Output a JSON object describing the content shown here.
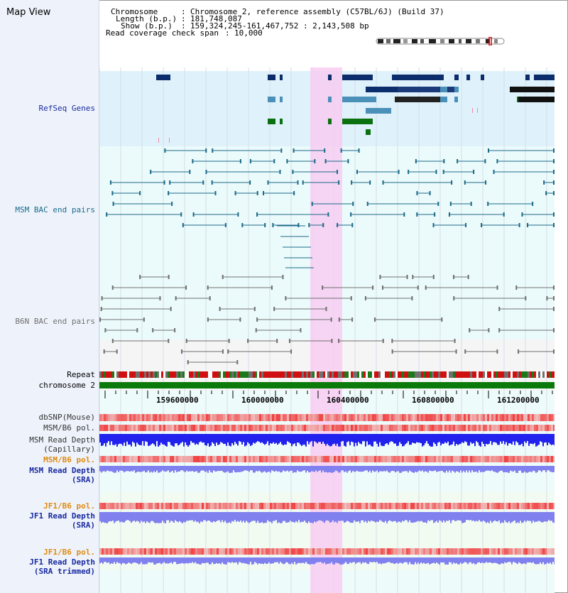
{
  "app": {
    "title": "Map View"
  },
  "info": {
    "chromosome_key": "Chromosome",
    "chromosome_val": "Chromosome 2, reference assembly (C57BL/6J) (Build 37)",
    "length_key": "Length (b.p.)",
    "length_val": "181,748,087",
    "show_key": "Show (b.p.)",
    "show_val": "159,324,245-161,467,752 : 2,143,508 bp",
    "coverage_key": "Read coverage check span",
    "coverage_val": "10,000"
  },
  "tracks": {
    "refseq": "RefSeq Genes",
    "msm_bac": "MSM BAC end pairs",
    "b6n_bac": "B6N BAC end pairs",
    "repeat": "Repeat",
    "chromosome": "chromosome 2",
    "dbsnp": "dbSNP(Mouse)",
    "msm_pol_cap": "MSM/B6 pol.",
    "msm_depth_cap_1": "MSM Read Depth",
    "msm_depth_cap_2": "(Capillary)",
    "msm_pol_sra": "MSM/B6 pol.",
    "msm_depth_sra_1": "MSM Read Depth",
    "msm_depth_sra_2": "(SRA)",
    "jf1_pol": "JF1/B6 pol.",
    "jf1_depth_1": "JF1 Read Depth",
    "jf1_depth_2": "(SRA)",
    "jf1_pol_trim": "JF1/B6 pol.",
    "jf1_trim_1": "JF1 Read Depth",
    "jf1_trim_2": "(SRA trimmed)"
  },
  "axis": {
    "ticks": [
      "159600000",
      "160000000",
      "160400000",
      "160800000",
      "161200000"
    ]
  },
  "colors": {
    "refseq_bg": "#dff2fb",
    "msm_bg": "#ebfbfb",
    "b6n_bg": "#f5f5f5",
    "highlight": "#f8cdf1",
    "gene_dark": "#0b2d6b",
    "gene_light": "#4a90b8",
    "gene_green": "#0b7010",
    "bac_msm": "#1d6a8a",
    "bac_b6n": "#707070",
    "chromosome": "#0a7a0a",
    "depth_cap": "#2222ee",
    "depth_sra": "#8080ee",
    "label_blue": "#1a2aa0",
    "label_orange": "#e08a10",
    "label_teal": "#1a6a8a"
  }
}
